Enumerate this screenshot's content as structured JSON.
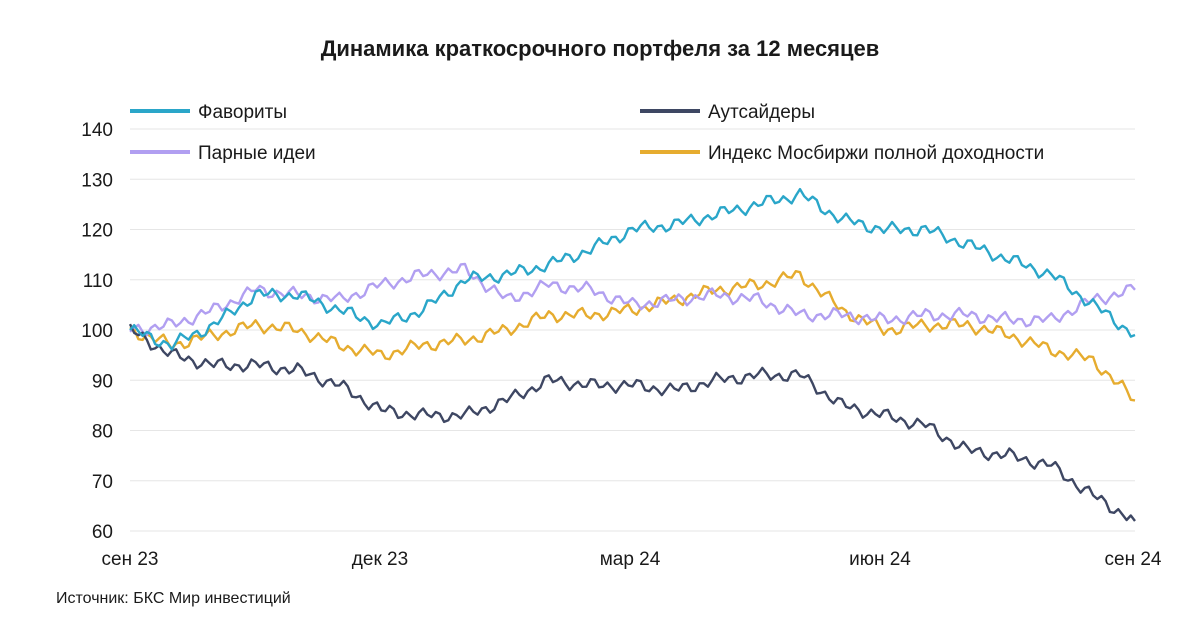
{
  "chart_data": {
    "type": "line",
    "title": "Динамика краткосрочного портфеля за 12 месяцев",
    "xlabel": "",
    "ylabel": "",
    "ylim": [
      60,
      140
    ],
    "y_ticks": [
      "60",
      "70",
      "80",
      "90",
      "100",
      "110",
      "120",
      "130",
      "140"
    ],
    "x_ticks": [
      "сен 23",
      "дек 23",
      "мар 24",
      "июн 24",
      "сен 24"
    ],
    "grid": true,
    "legend": "top",
    "source": "Источник: БКС Мир инвестиций",
    "x": [
      "сен 23",
      "окт 23",
      "окт 23",
      "окт 23",
      "ноя 23",
      "ноя 23",
      "дек 23",
      "дек 23",
      "янв 24",
      "янв 24",
      "фев 24",
      "фев 24",
      "мар 24",
      "мар 24",
      "апр 24",
      "апр 24",
      "май 24",
      "май 24",
      "июн 24",
      "июн 24",
      "июл 24",
      "июл 24",
      "авг 24",
      "авг 24",
      "сен 24"
    ],
    "series": [
      {
        "name": "Фавориты",
        "color": "#2aa6c9",
        "values": [
          100,
          97,
          101,
          107,
          107,
          104,
          101,
          104,
          110,
          111,
          113,
          116,
          120,
          121,
          123,
          125,
          127,
          122,
          120,
          120,
          117,
          114,
          111,
          105,
          99
        ]
      },
      {
        "name": "Аутсайдеры",
        "color": "#3e4763",
        "values": [
          100,
          95,
          93,
          93,
          92,
          89,
          84,
          83,
          83,
          86,
          90,
          89,
          89,
          88,
          90,
          91,
          91,
          85,
          83,
          81,
          76,
          75,
          73,
          67,
          62
        ]
      },
      {
        "name": "Парные идеи",
        "color": "#b19ff1",
        "values": [
          100,
          101,
          104,
          108,
          107,
          106,
          109,
          111,
          112,
          106,
          109,
          108,
          105,
          106,
          107,
          106,
          103,
          103,
          102,
          103,
          103,
          102,
          102,
          106,
          108
        ]
      },
      {
        "name": "Индекс Мосбиржи полной доходности",
        "color": "#e6ac2f",
        "values": [
          100,
          97,
          99,
          101,
          100,
          97,
          95,
          97,
          98,
          100,
          103,
          103,
          104,
          106,
          108,
          109,
          111,
          104,
          100,
          101,
          101,
          99,
          96,
          94,
          86
        ]
      }
    ]
  }
}
